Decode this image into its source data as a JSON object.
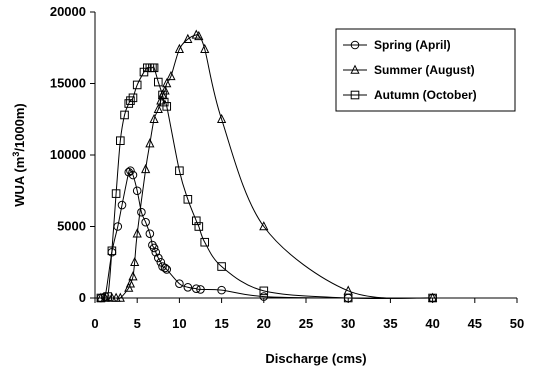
{
  "chart_data": {
    "type": "line",
    "title": "",
    "xlabel": "Discharge (cms)",
    "ylabel_main": "WUA (m",
    "ylabel_sup": "3",
    "ylabel_tail": "/1000m)",
    "xlim": [
      0,
      50
    ],
    "ylim": [
      0,
      20000
    ],
    "xticks": [
      0,
      5,
      10,
      15,
      20,
      25,
      30,
      35,
      40,
      45,
      50
    ],
    "yticks": [
      0,
      5000,
      10000,
      15000,
      20000
    ],
    "grid": false,
    "legend_position": "top-right",
    "series": [
      {
        "name": "Spring (April)",
        "marker": "circle",
        "x": [
          0.7,
          1.2,
          2,
          2.7,
          3.2,
          4,
          4.2,
          4.5,
          5,
          5.5,
          6,
          6.5,
          6.8,
          7,
          7.2,
          7.5,
          7.8,
          8,
          8.3,
          8.5,
          10,
          11,
          12,
          12.5,
          15,
          20,
          30,
          40
        ],
        "y": [
          0,
          100,
          3200,
          5000,
          6500,
          8800,
          8900,
          8600,
          7500,
          6000,
          5300,
          4500,
          3700,
          3500,
          3200,
          2800,
          2500,
          2200,
          2100,
          2000,
          1000,
          750,
          650,
          600,
          550,
          100,
          0,
          0
        ]
      },
      {
        "name": "Summer (August)",
        "marker": "triangle",
        "x": [
          0.7,
          1.2,
          2,
          2.5,
          3,
          4,
          4.2,
          4.5,
          4.7,
          5,
          6,
          6.5,
          7,
          7.5,
          7.8,
          8,
          8.3,
          8.5,
          9,
          10,
          11,
          12,
          12.3,
          13,
          15,
          20,
          30,
          40
        ],
        "y": [
          0,
          0,
          0,
          0,
          0,
          700,
          1000,
          1500,
          2500,
          4500,
          9000,
          10800,
          12500,
          13200,
          13800,
          14200,
          14500,
          15000,
          15500,
          17400,
          18100,
          18400,
          18300,
          17400,
          12500,
          5000,
          500,
          0
        ]
      },
      {
        "name": "Autumn (October)",
        "marker": "square",
        "x": [
          0.7,
          1.5,
          2,
          2.5,
          3,
          3.5,
          4,
          4.2,
          4.5,
          5,
          5.8,
          6.2,
          6.5,
          6.8,
          7,
          7.5,
          8,
          8.2,
          8.5,
          10,
          11,
          12,
          12.3,
          13,
          15,
          20,
          30,
          40
        ],
        "y": [
          0,
          100,
          3300,
          7300,
          11000,
          12800,
          13600,
          13800,
          14000,
          14900,
          15800,
          16100,
          16100,
          16100,
          16100,
          15100,
          14200,
          13700,
          13400,
          8900,
          6900,
          5400,
          5000,
          3900,
          2200,
          500,
          0,
          0
        ]
      }
    ]
  }
}
